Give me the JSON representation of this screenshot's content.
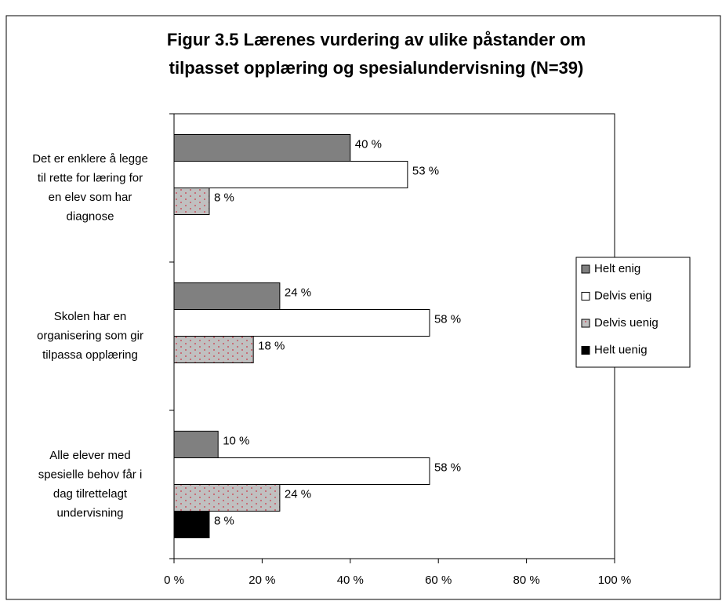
{
  "chart_data": {
    "type": "hbar",
    "title": "Figur 3.5 Lærenes vurdering av ulike påstander om\ntilpasset opplæring og spesialundervisning (N=39)",
    "categories": [
      "Det er enklere å legge\ntil rette for læring for\nen elev som har\ndiagnose",
      "Skolen har en\norganisering som gir\ntilpassa opplæring",
      "Alle elever med\nspesielle behov får i\ndag tilrettelagt\nundervisning"
    ],
    "series": [
      {
        "name": "Helt enig",
        "color": "#808080",
        "values": [
          40,
          24,
          10
        ],
        "value_labels": [
          "40 %",
          "24 %",
          "10 %"
        ]
      },
      {
        "name": "Delvis enig",
        "color": "#ffffff",
        "values": [
          53,
          58,
          58
        ],
        "value_labels": [
          "53 %",
          "58 %",
          "58 %"
        ]
      },
      {
        "name": "Delvis uenig",
        "color": "#c0c0c0",
        "pattern": "dots",
        "values": [
          8,
          18,
          24
        ],
        "value_labels": [
          "8 %",
          "18 %",
          "24 %"
        ]
      },
      {
        "name": "Helt uenig",
        "color": "#000000",
        "values": [
          null,
          null,
          8
        ],
        "value_labels": [
          null,
          null,
          "8 %"
        ]
      }
    ],
    "xlim": [
      0,
      100
    ],
    "xticks": [
      {
        "value": 0,
        "label": "0 %"
      },
      {
        "value": 20,
        "label": "20 %"
      },
      {
        "value": 40,
        "label": "40 %"
      },
      {
        "value": 60,
        "label": "60 %"
      },
      {
        "value": 80,
        "label": "80 %"
      },
      {
        "value": 100,
        "label": "100 %"
      }
    ],
    "legend": "right"
  }
}
